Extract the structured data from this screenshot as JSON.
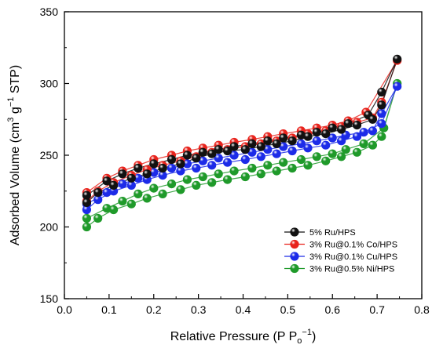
{
  "chart_data": {
    "type": "scatter",
    "title": "",
    "xlabel": {
      "main": "Relative Pressure (P P",
      "sub": "o",
      "sup": "−1",
      "close": ")"
    },
    "ylabel": {
      "pre": "Adsorbed Volume (cm",
      "sup1": "3",
      "mid": " g",
      "sup2": "−1",
      "post": " STP)"
    },
    "xlim": [
      0.0,
      0.8
    ],
    "ylim": [
      150,
      350
    ],
    "xticks": [
      "0.0",
      "0.1",
      "0.2",
      "0.3",
      "0.4",
      "0.5",
      "0.6",
      "0.7",
      "0.8"
    ],
    "yticks": [
      "150",
      "200",
      "250",
      "300",
      "350"
    ],
    "grid": false,
    "legend_position": "lower-right",
    "series": [
      {
        "name": "5% Ru/HPS",
        "color": "#111111",
        "adsorption": [
          [
            0.05,
            217
          ],
          [
            0.075,
            224
          ],
          [
            0.11,
            229
          ],
          [
            0.15,
            234
          ],
          [
            0.185,
            237
          ],
          [
            0.22,
            241
          ],
          [
            0.26,
            244
          ],
          [
            0.295,
            248
          ],
          [
            0.33,
            251
          ],
          [
            0.365,
            253
          ],
          [
            0.405,
            254
          ],
          [
            0.44,
            256
          ],
          [
            0.475,
            258
          ],
          [
            0.51,
            260
          ],
          [
            0.545,
            263
          ],
          [
            0.585,
            265
          ],
          [
            0.62,
            268
          ],
          [
            0.655,
            271
          ],
          [
            0.69,
            275
          ],
          [
            0.71,
            285
          ],
          [
            0.745,
            317
          ]
        ],
        "desorption": [
          [
            0.71,
            294
          ],
          [
            0.68,
            278
          ],
          [
            0.635,
            272
          ],
          [
            0.6,
            269
          ],
          [
            0.565,
            266
          ],
          [
            0.53,
            264
          ],
          [
            0.49,
            262
          ],
          [
            0.455,
            260
          ],
          [
            0.42,
            258
          ],
          [
            0.38,
            256
          ],
          [
            0.345,
            254
          ],
          [
            0.31,
            252
          ],
          [
            0.275,
            250
          ],
          [
            0.24,
            247
          ],
          [
            0.2,
            244
          ],
          [
            0.165,
            241
          ],
          [
            0.13,
            237
          ],
          [
            0.095,
            232
          ],
          [
            0.05,
            222
          ]
        ]
      },
      {
        "name": "3% Ru@0.1% Co/HPS",
        "color": "#e8231c",
        "adsorption": [
          [
            0.05,
            218
          ],
          [
            0.075,
            225
          ],
          [
            0.11,
            231
          ],
          [
            0.15,
            236
          ],
          [
            0.185,
            240
          ],
          [
            0.22,
            243
          ],
          [
            0.26,
            246
          ],
          [
            0.295,
            249
          ],
          [
            0.33,
            252
          ],
          [
            0.365,
            254
          ],
          [
            0.405,
            256
          ],
          [
            0.44,
            258
          ],
          [
            0.475,
            260
          ],
          [
            0.51,
            262
          ],
          [
            0.545,
            265
          ],
          [
            0.585,
            267
          ],
          [
            0.62,
            270
          ],
          [
            0.655,
            273
          ],
          [
            0.69,
            276
          ],
          [
            0.71,
            287
          ],
          [
            0.745,
            316
          ]
        ],
        "desorption": [
          [
            0.675,
            280
          ],
          [
            0.635,
            274
          ],
          [
            0.6,
            271
          ],
          [
            0.565,
            269
          ],
          [
            0.53,
            267
          ],
          [
            0.49,
            265
          ],
          [
            0.455,
            263
          ],
          [
            0.42,
            261
          ],
          [
            0.38,
            259
          ],
          [
            0.345,
            257
          ],
          [
            0.31,
            255
          ],
          [
            0.275,
            253
          ],
          [
            0.24,
            250
          ],
          [
            0.2,
            247
          ],
          [
            0.165,
            243
          ],
          [
            0.13,
            239
          ],
          [
            0.095,
            234
          ],
          [
            0.05,
            224
          ]
        ]
      },
      {
        "name": "3% Ru@0.1% Cu/HPS",
        "color": "#1c2be8",
        "adsorption": [
          [
            0.05,
            212
          ],
          [
            0.075,
            219
          ],
          [
            0.11,
            225
          ],
          [
            0.15,
            229
          ],
          [
            0.185,
            233
          ],
          [
            0.22,
            236
          ],
          [
            0.26,
            239
          ],
          [
            0.295,
            241
          ],
          [
            0.33,
            243
          ],
          [
            0.365,
            245
          ],
          [
            0.405,
            247
          ],
          [
            0.44,
            249
          ],
          [
            0.475,
            251
          ],
          [
            0.51,
            253
          ],
          [
            0.545,
            255
          ],
          [
            0.585,
            257
          ],
          [
            0.62,
            260
          ],
          [
            0.655,
            263
          ],
          [
            0.69,
            267
          ],
          [
            0.71,
            279
          ],
          [
            0.745,
            298
          ]
        ],
        "desorption": [
          [
            0.71,
            272
          ],
          [
            0.67,
            266
          ],
          [
            0.63,
            264
          ],
          [
            0.6,
            262
          ],
          [
            0.565,
            260
          ],
          [
            0.53,
            258
          ],
          [
            0.49,
            256
          ],
          [
            0.455,
            254
          ],
          [
            0.42,
            252
          ],
          [
            0.38,
            250
          ],
          [
            0.345,
            248
          ],
          [
            0.31,
            246
          ],
          [
            0.275,
            244
          ],
          [
            0.24,
            241
          ],
          [
            0.2,
            238
          ],
          [
            0.165,
            234
          ],
          [
            0.13,
            230
          ],
          [
            0.095,
            224
          ],
          [
            0.05,
            216
          ]
        ]
      },
      {
        "name": "3% Ru@0.5% Ni/HPS",
        "color": "#1f9a2a",
        "adsorption": [
          [
            0.05,
            200
          ],
          [
            0.075,
            206
          ],
          [
            0.11,
            212
          ],
          [
            0.15,
            216
          ],
          [
            0.185,
            220
          ],
          [
            0.22,
            223
          ],
          [
            0.26,
            226
          ],
          [
            0.295,
            229
          ],
          [
            0.33,
            231
          ],
          [
            0.365,
            233
          ],
          [
            0.405,
            235
          ],
          [
            0.44,
            237
          ],
          [
            0.475,
            239
          ],
          [
            0.51,
            241
          ],
          [
            0.545,
            243
          ],
          [
            0.585,
            246
          ],
          [
            0.62,
            249
          ],
          [
            0.655,
            252
          ],
          [
            0.69,
            257
          ],
          [
            0.71,
            263
          ],
          [
            0.745,
            300
          ]
        ],
        "desorption": [
          [
            0.715,
            269
          ],
          [
            0.67,
            258
          ],
          [
            0.63,
            254
          ],
          [
            0.6,
            251
          ],
          [
            0.565,
            249
          ],
          [
            0.53,
            247
          ],
          [
            0.49,
            245
          ],
          [
            0.455,
            243
          ],
          [
            0.42,
            241
          ],
          [
            0.38,
            239
          ],
          [
            0.345,
            237
          ],
          [
            0.31,
            235
          ],
          [
            0.275,
            233
          ],
          [
            0.24,
            230
          ],
          [
            0.2,
            227
          ],
          [
            0.165,
            223
          ],
          [
            0.13,
            218
          ],
          [
            0.095,
            213
          ],
          [
            0.05,
            206
          ]
        ]
      }
    ]
  }
}
